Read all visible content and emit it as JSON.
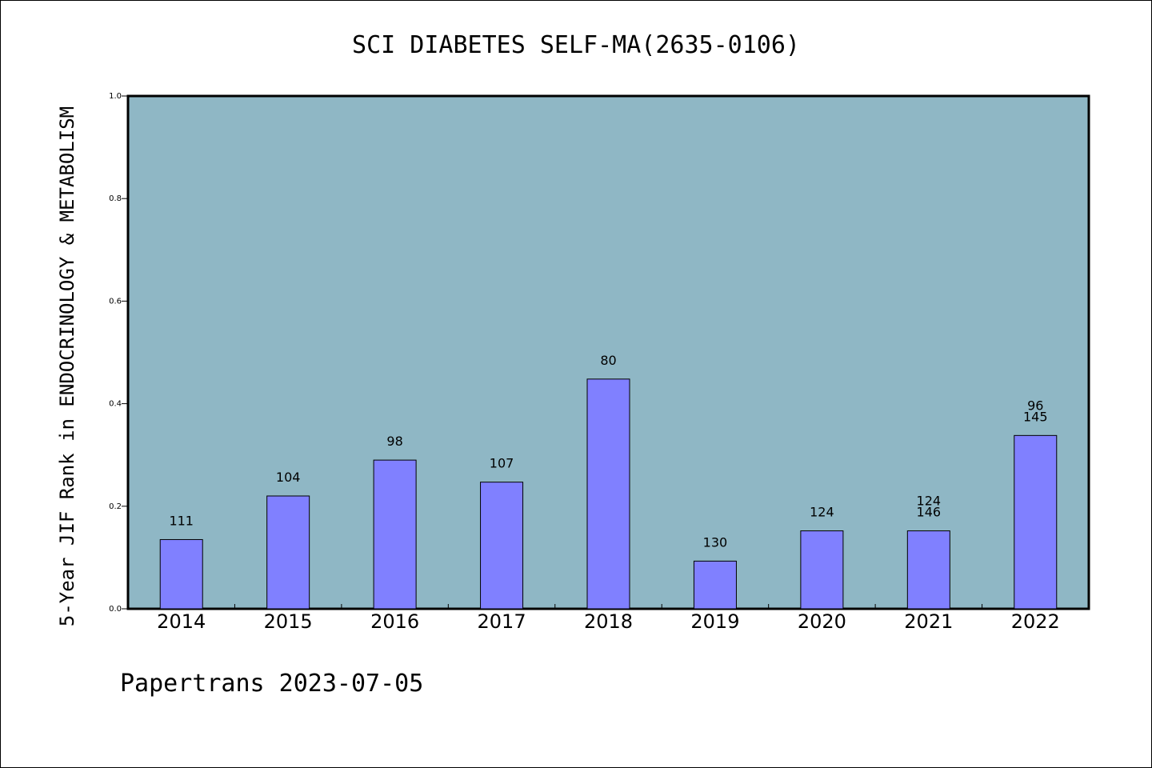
{
  "chart_data": {
    "type": "bar",
    "title": "SCI DIABETES SELF-MA(2635-0106)",
    "ylabel": "5-Year JIF Rank in ENDOCRINOLOGY & METABOLISM",
    "xlabel": "",
    "ylim": [
      0,
      1.0
    ],
    "yticks": [
      "0.0",
      "0.2",
      "0.4",
      "0.6",
      "0.8",
      "1.0"
    ],
    "categories": [
      "2014",
      "2015",
      "2016",
      "2017",
      "2018",
      "2019",
      "2020",
      "2021",
      "2022"
    ],
    "values": [
      0.135,
      0.22,
      0.29,
      0.247,
      0.448,
      0.093,
      0.152,
      0.152,
      0.338
    ],
    "labels": [
      [
        "111"
      ],
      [
        "104"
      ],
      [
        "98"
      ],
      [
        "107"
      ],
      [
        "80"
      ],
      [
        "130"
      ],
      [
        "124"
      ],
      [
        "124",
        "146"
      ],
      [
        "96",
        "145"
      ]
    ],
    "bar_color": "#8080ff",
    "plot_background": "#8fb7c5",
    "grid": false,
    "legend": "none"
  },
  "footer": "Papertrans 2023-07-05"
}
